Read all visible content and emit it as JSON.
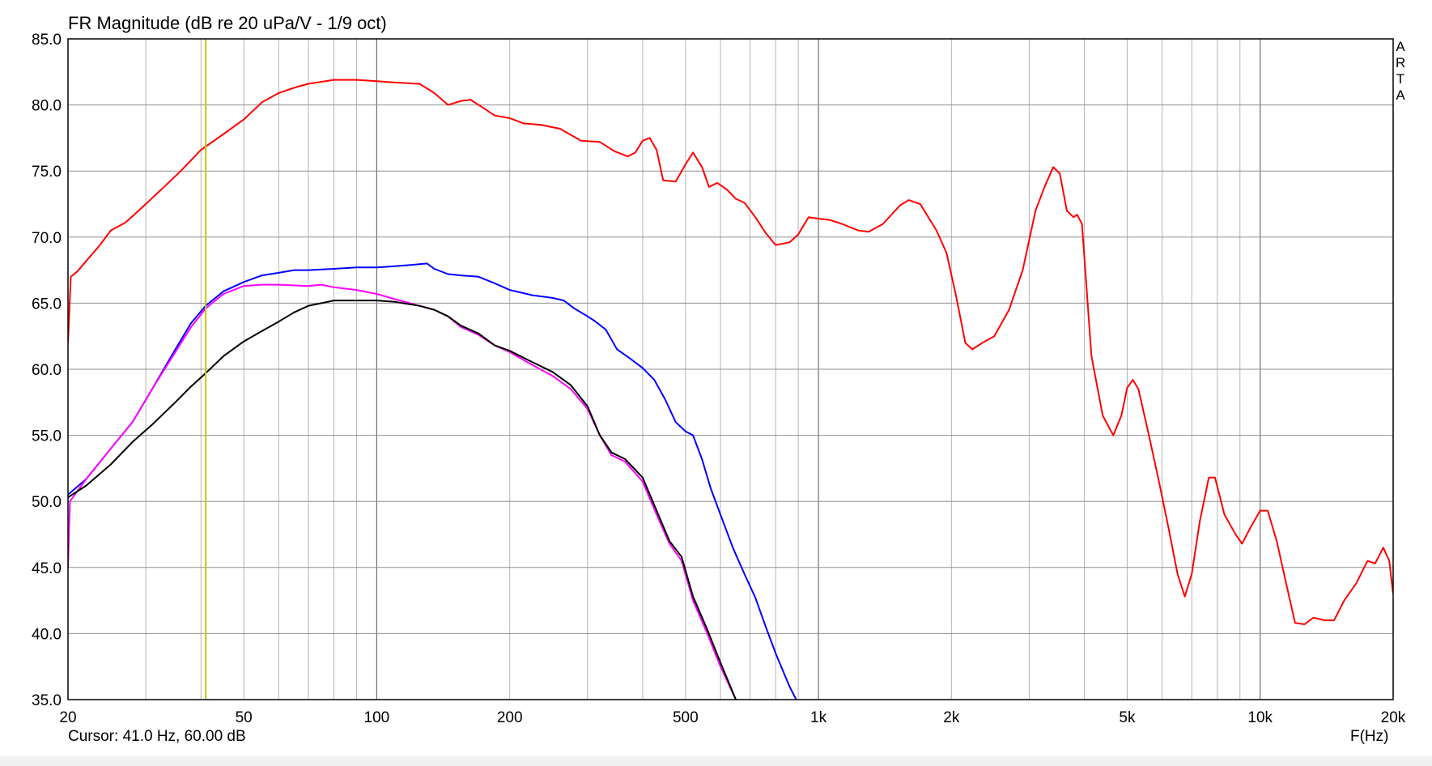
{
  "chart_data": {
    "type": "line",
    "title": "FR Magnitude (dB re 20 uPa/V - 1/9 oct)",
    "xlabel": "F(Hz)",
    "xscale": "log",
    "xlim": [
      20,
      20000
    ],
    "ylim": [
      35,
      85
    ],
    "grid": true,
    "legend": "none",
    "x_ticks": [
      {
        "v": 20,
        "label": "20"
      },
      {
        "v": 50,
        "label": "50"
      },
      {
        "v": 100,
        "label": "100"
      },
      {
        "v": 200,
        "label": "200"
      },
      {
        "v": 500,
        "label": "500"
      },
      {
        "v": 1000,
        "label": "1k"
      },
      {
        "v": 2000,
        "label": "2k"
      },
      {
        "v": 5000,
        "label": "5k"
      },
      {
        "v": 10000,
        "label": "10k"
      },
      {
        "v": 20000,
        "label": "20k"
      }
    ],
    "y_ticks": [
      "35.0",
      "40.0",
      "45.0",
      "50.0",
      "55.0",
      "60.0",
      "65.0",
      "70.0",
      "75.0",
      "80.0",
      "85.0"
    ],
    "cursor": {
      "freq": 41,
      "color": "#c8c800",
      "readout": "Cursor: 41.0 Hz, 60.00 dB"
    },
    "side_label": [
      "A",
      "R",
      "T",
      "A"
    ],
    "series": [
      {
        "color": "#ff0000",
        "points": [
          [
            20,
            62
          ],
          [
            20.3,
            67
          ],
          [
            21,
            67.4
          ],
          [
            22,
            68.2
          ],
          [
            23.5,
            69.3
          ],
          [
            25,
            70.5
          ],
          [
            27,
            71.1
          ],
          [
            30,
            72.5
          ],
          [
            33,
            73.8
          ],
          [
            36,
            75
          ],
          [
            40,
            76.6
          ],
          [
            45,
            77.8
          ],
          [
            50,
            78.9
          ],
          [
            55,
            80.2
          ],
          [
            60,
            80.9
          ],
          [
            65,
            81.3
          ],
          [
            70,
            81.6
          ],
          [
            80,
            81.9
          ],
          [
            90,
            81.9
          ],
          [
            100,
            81.8
          ],
          [
            110,
            81.7
          ],
          [
            125,
            81.6
          ],
          [
            135,
            80.9
          ],
          [
            145,
            80
          ],
          [
            155,
            80.3
          ],
          [
            163,
            80.4
          ],
          [
            172,
            79.9
          ],
          [
            185,
            79.2
          ],
          [
            200,
            79
          ],
          [
            215,
            78.6
          ],
          [
            235,
            78.5
          ],
          [
            260,
            78.2
          ],
          [
            290,
            77.3
          ],
          [
            320,
            77.2
          ],
          [
            345,
            76.5
          ],
          [
            370,
            76.1
          ],
          [
            385,
            76.4
          ],
          [
            400,
            77.3
          ],
          [
            415,
            77.5
          ],
          [
            430,
            76.6
          ],
          [
            445,
            74.3
          ],
          [
            475,
            74.2
          ],
          [
            500,
            75.5
          ],
          [
            520,
            76.4
          ],
          [
            545,
            75.3
          ],
          [
            565,
            73.8
          ],
          [
            590,
            74.1
          ],
          [
            620,
            73.6
          ],
          [
            650,
            72.9
          ],
          [
            680,
            72.6
          ],
          [
            720,
            71.5
          ],
          [
            760,
            70.3
          ],
          [
            800,
            69.4
          ],
          [
            860,
            69.6
          ],
          [
            900,
            70.2
          ],
          [
            950,
            71.5
          ],
          [
            1000,
            71.4
          ],
          [
            1060,
            71.3
          ],
          [
            1130,
            71
          ],
          [
            1230,
            70.5
          ],
          [
            1300,
            70.4
          ],
          [
            1400,
            71
          ],
          [
            1530,
            72.4
          ],
          [
            1600,
            72.8
          ],
          [
            1700,
            72.5
          ],
          [
            1850,
            70.5
          ],
          [
            1950,
            68.8
          ],
          [
            2050,
            65.5
          ],
          [
            2150,
            62
          ],
          [
            2230,
            61.5
          ],
          [
            2350,
            62
          ],
          [
            2500,
            62.5
          ],
          [
            2700,
            64.5
          ],
          [
            2900,
            67.5
          ],
          [
            3100,
            72
          ],
          [
            3250,
            73.8
          ],
          [
            3400,
            75.3
          ],
          [
            3520,
            74.8
          ],
          [
            3650,
            72
          ],
          [
            3780,
            71.5
          ],
          [
            3850,
            71.7
          ],
          [
            3950,
            71
          ],
          [
            4150,
            61
          ],
          [
            4400,
            56.5
          ],
          [
            4650,
            55
          ],
          [
            4850,
            56.5
          ],
          [
            5000,
            58.6
          ],
          [
            5150,
            59.2
          ],
          [
            5300,
            58.5
          ],
          [
            5600,
            55
          ],
          [
            5900,
            51.5
          ],
          [
            6200,
            48
          ],
          [
            6500,
            44.5
          ],
          [
            6750,
            42.8
          ],
          [
            7000,
            44.5
          ],
          [
            7300,
            48.5
          ],
          [
            7650,
            51.8
          ],
          [
            7900,
            51.8
          ],
          [
            8300,
            49
          ],
          [
            8800,
            47.5
          ],
          [
            9100,
            46.8
          ],
          [
            9500,
            48
          ],
          [
            10000,
            49.3
          ],
          [
            10400,
            49.3
          ],
          [
            10900,
            47
          ],
          [
            11500,
            43.5
          ],
          [
            12000,
            40.8
          ],
          [
            12600,
            40.7
          ],
          [
            13200,
            41.2
          ],
          [
            14000,
            41
          ],
          [
            14700,
            41
          ],
          [
            15500,
            42.5
          ],
          [
            16500,
            43.8
          ],
          [
            17500,
            45.5
          ],
          [
            18200,
            45.3
          ],
          [
            19000,
            46.5
          ],
          [
            19600,
            45.5
          ],
          [
            20000,
            43
          ]
        ]
      },
      {
        "color": "#0000ff",
        "points": [
          [
            20,
            50.5
          ],
          [
            22,
            51.7
          ],
          [
            25,
            54
          ],
          [
            28,
            56
          ],
          [
            31,
            58.5
          ],
          [
            35,
            61.5
          ],
          [
            38,
            63.5
          ],
          [
            41,
            64.8
          ],
          [
            45,
            65.9
          ],
          [
            50,
            66.6
          ],
          [
            55,
            67.1
          ],
          [
            60,
            67.3
          ],
          [
            65,
            67.5
          ],
          [
            70,
            67.5
          ],
          [
            80,
            67.6
          ],
          [
            90,
            67.7
          ],
          [
            100,
            67.7
          ],
          [
            110,
            67.8
          ],
          [
            120,
            67.9
          ],
          [
            130,
            68
          ],
          [
            135,
            67.6
          ],
          [
            145,
            67.2
          ],
          [
            155,
            67.1
          ],
          [
            170,
            67
          ],
          [
            185,
            66.5
          ],
          [
            200,
            66
          ],
          [
            225,
            65.6
          ],
          [
            250,
            65.4
          ],
          [
            265,
            65.2
          ],
          [
            280,
            64.6
          ],
          [
            300,
            64
          ],
          [
            310,
            63.7
          ],
          [
            330,
            63
          ],
          [
            350,
            61.5
          ],
          [
            375,
            60.8
          ],
          [
            400,
            60.1
          ],
          [
            425,
            59.2
          ],
          [
            450,
            57.7
          ],
          [
            475,
            56
          ],
          [
            500,
            55.3
          ],
          [
            520,
            55
          ],
          [
            545,
            53.2
          ],
          [
            570,
            51
          ],
          [
            600,
            49
          ],
          [
            640,
            46.5
          ],
          [
            680,
            44.5
          ],
          [
            720,
            42.7
          ],
          [
            760,
            40.5
          ],
          [
            800,
            38.5
          ],
          [
            860,
            36
          ],
          [
            890,
            35
          ]
        ]
      },
      {
        "color": "#ff00ff",
        "points": [
          [
            20,
            45
          ],
          [
            20.2,
            50
          ],
          [
            22,
            51.7
          ],
          [
            25,
            54
          ],
          [
            28,
            56
          ],
          [
            31,
            58.5
          ],
          [
            35,
            61.3
          ],
          [
            38,
            63.2
          ],
          [
            41,
            64.6
          ],
          [
            45,
            65.7
          ],
          [
            50,
            66.3
          ],
          [
            55,
            66.4
          ],
          [
            60,
            66.4
          ],
          [
            70,
            66.3
          ],
          [
            75,
            66.4
          ],
          [
            80,
            66.2
          ],
          [
            90,
            66
          ],
          [
            100,
            65.7
          ],
          [
            110,
            65.3
          ],
          [
            125,
            64.8
          ],
          [
            135,
            64.5
          ],
          [
            145,
            64
          ],
          [
            155,
            63.2
          ],
          [
            170,
            62.6
          ],
          [
            185,
            61.8
          ],
          [
            200,
            61.3
          ],
          [
            220,
            60.5
          ],
          [
            250,
            59.5
          ],
          [
            275,
            58.5
          ],
          [
            300,
            57
          ],
          [
            320,
            55
          ],
          [
            340,
            53.5
          ],
          [
            365,
            53
          ],
          [
            400,
            51.5
          ],
          [
            430,
            49
          ],
          [
            460,
            46.8
          ],
          [
            490,
            45.5
          ],
          [
            520,
            42.5
          ],
          [
            560,
            40
          ],
          [
            600,
            37.5
          ],
          [
            650,
            35
          ]
        ]
      },
      {
        "color": "#000000",
        "points": [
          [
            20,
            50.3
          ],
          [
            22,
            51.2
          ],
          [
            25,
            52.8
          ],
          [
            28,
            54.5
          ],
          [
            31,
            55.8
          ],
          [
            35,
            57.5
          ],
          [
            38,
            58.7
          ],
          [
            41,
            59.7
          ],
          [
            45,
            61
          ],
          [
            50,
            62.1
          ],
          [
            55,
            62.9
          ],
          [
            60,
            63.6
          ],
          [
            65,
            64.3
          ],
          [
            70,
            64.8
          ],
          [
            75,
            65
          ],
          [
            80,
            65.2
          ],
          [
            90,
            65.2
          ],
          [
            100,
            65.2
          ],
          [
            110,
            65.1
          ],
          [
            125,
            64.8
          ],
          [
            135,
            64.5
          ],
          [
            145,
            64
          ],
          [
            155,
            63.3
          ],
          [
            170,
            62.7
          ],
          [
            185,
            61.8
          ],
          [
            200,
            61.4
          ],
          [
            220,
            60.7
          ],
          [
            250,
            59.8
          ],
          [
            275,
            58.8
          ],
          [
            300,
            57.2
          ],
          [
            320,
            55
          ],
          [
            340,
            53.7
          ],
          [
            365,
            53.2
          ],
          [
            400,
            51.8
          ],
          [
            430,
            49.3
          ],
          [
            460,
            47
          ],
          [
            490,
            45.8
          ],
          [
            520,
            42.8
          ],
          [
            560,
            40.3
          ],
          [
            600,
            37.8
          ],
          [
            650,
            35
          ]
        ]
      }
    ]
  }
}
